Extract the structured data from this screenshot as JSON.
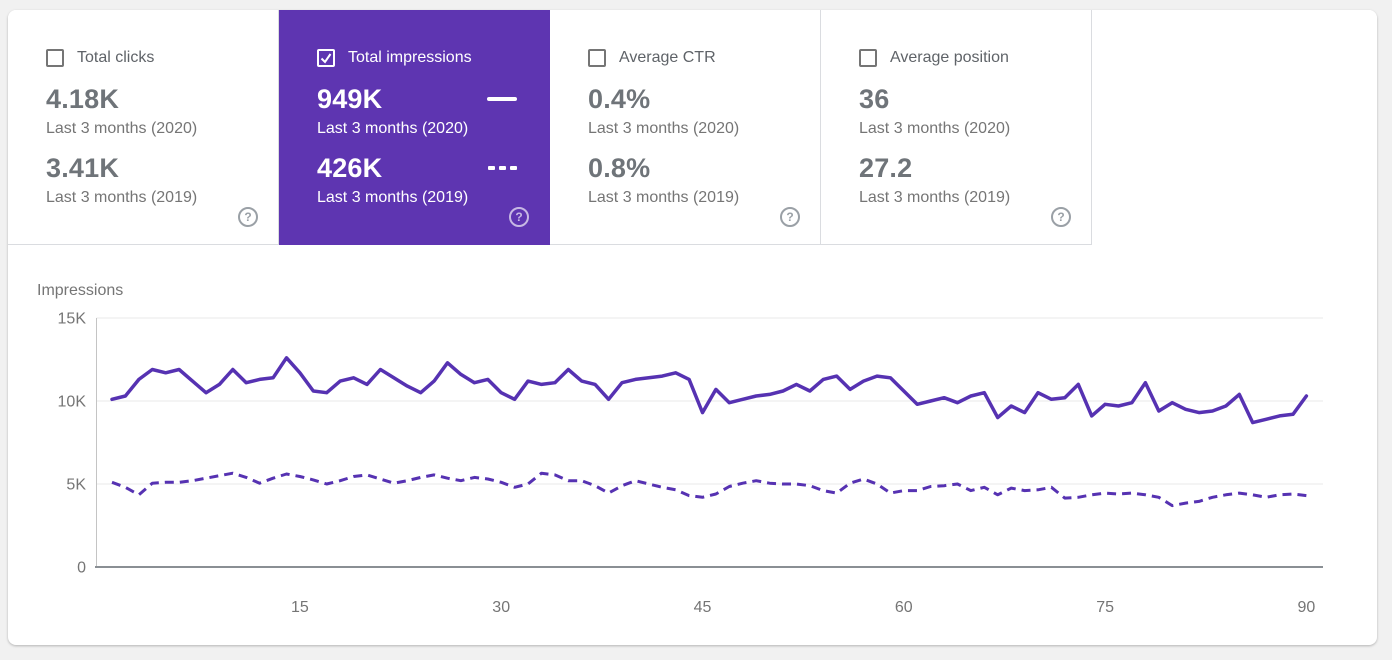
{
  "ui": {
    "help_glyph": "?"
  },
  "colors": {
    "selected_card_bg": "#5e35b1",
    "line_purple": "#5632b2",
    "card_border": "#dadce0",
    "text_gray": "#757575",
    "page_bg": "#f1f1f1",
    "axis_line": "#8a8f94",
    "gridline": "#e9e9e9"
  },
  "cards": [
    {
      "label": "Total clicks",
      "checked": false,
      "selected": false,
      "values": [
        {
          "value": "4.18K",
          "caption": "Last 3 months (2020)"
        },
        {
          "value": "3.41K",
          "caption": "Last 3 months (2019)"
        }
      ]
    },
    {
      "label": "Total impressions",
      "checked": true,
      "selected": true,
      "values": [
        {
          "value": "949K",
          "caption": "Last 3 months (2020)",
          "legend": "solid-line"
        },
        {
          "value": "426K",
          "caption": "Last 3 months (2019)",
          "legend": "dashed-line"
        }
      ]
    },
    {
      "label": "Average CTR",
      "checked": false,
      "selected": false,
      "values": [
        {
          "value": "0.4%",
          "caption": "Last 3 months (2020)"
        },
        {
          "value": "0.8%",
          "caption": "Last 3 months (2019)"
        }
      ]
    },
    {
      "label": "Average position",
      "checked": false,
      "selected": false,
      "values": [
        {
          "value": "36",
          "caption": "Last 3 months (2020)"
        },
        {
          "value": "27.2",
          "caption": "Last 3 months (2019)"
        }
      ]
    }
  ],
  "chart_data": {
    "type": "line",
    "title": "Impressions",
    "ylabel": "Impressions",
    "x_unit": "day_index",
    "x_range": [
      1,
      90
    ],
    "xticks": [
      15,
      30,
      45,
      60,
      75,
      90
    ],
    "yticks": [
      {
        "label": "0",
        "value": 0
      },
      {
        "label": "5K",
        "value": 5
      },
      {
        "label": "10K",
        "value": 10
      },
      {
        "label": "15K",
        "value": 15
      }
    ],
    "y_unit": "thousands",
    "ylim_thousands": [
      0,
      15
    ],
    "grid": "horizontal",
    "legend_position": "in-card",
    "series": [
      {
        "name": "Last 3 months (2020)",
        "style": "solid",
        "color": "#5632b2",
        "values": [
          10.1,
          10.3,
          11.3,
          11.9,
          11.7,
          11.9,
          11.2,
          10.5,
          11.0,
          11.9,
          11.1,
          11.3,
          11.4,
          12.6,
          11.7,
          10.6,
          10.5,
          11.2,
          11.4,
          11.0,
          11.9,
          11.4,
          10.9,
          10.5,
          11.2,
          12.3,
          11.6,
          11.1,
          11.3,
          10.5,
          10.1,
          11.2,
          11.0,
          11.1,
          11.9,
          11.2,
          11.0,
          10.1,
          11.1,
          11.3,
          11.4,
          11.5,
          11.7,
          11.3,
          9.3,
          10.7,
          9.9,
          10.1,
          10.3,
          10.4,
          10.6,
          11.0,
          10.6,
          11.3,
          11.5,
          10.7,
          11.2,
          11.5,
          11.4,
          10.6,
          9.8,
          10.0,
          10.2,
          9.9,
          10.3,
          10.5,
          9.0,
          9.7,
          9.3,
          10.5,
          10.1,
          10.2,
          11.0,
          9.1,
          9.8,
          9.7,
          9.9,
          11.1,
          9.4,
          9.9,
          9.5,
          9.3,
          9.4,
          9.7,
          10.4,
          8.7,
          8.9,
          9.1,
          9.2,
          10.3
        ]
      },
      {
        "name": "Last 3 months (2019)",
        "style": "dashed",
        "color": "#5632b2",
        "values": [
          5.1,
          4.8,
          4.35,
          5.05,
          5.1,
          5.1,
          5.2,
          5.35,
          5.5,
          5.65,
          5.4,
          5.05,
          5.35,
          5.6,
          5.45,
          5.25,
          5.0,
          5.2,
          5.45,
          5.55,
          5.3,
          5.05,
          5.2,
          5.4,
          5.55,
          5.35,
          5.2,
          5.4,
          5.3,
          5.1,
          4.8,
          5.0,
          5.65,
          5.55,
          5.2,
          5.2,
          4.9,
          4.45,
          4.9,
          5.2,
          5.0,
          4.8,
          4.65,
          4.3,
          4.2,
          4.4,
          4.85,
          5.05,
          5.2,
          5.05,
          5.0,
          5.0,
          4.9,
          4.6,
          4.45,
          5.05,
          5.3,
          5.0,
          4.45,
          4.6,
          4.6,
          4.85,
          4.9,
          5.0,
          4.6,
          4.8,
          4.35,
          4.75,
          4.6,
          4.65,
          4.8,
          4.15,
          4.2,
          4.35,
          4.45,
          4.4,
          4.45,
          4.35,
          4.2,
          3.7,
          3.85,
          3.95,
          4.2,
          4.35,
          4.45,
          4.35,
          4.2,
          4.35,
          4.4,
          4.3
        ]
      }
    ]
  }
}
